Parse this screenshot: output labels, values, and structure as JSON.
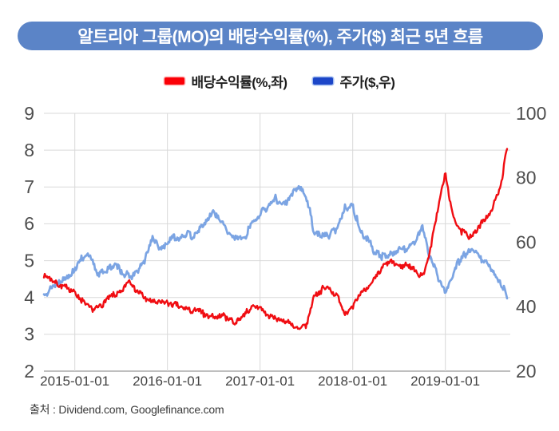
{
  "title": "알트리아 그룹(MO)의 배당수익률(%), 주가($) 최근 5년 흐름",
  "banner_color": "#5b84c7",
  "legend": [
    {
      "label": "배당수익률(%,좌)",
      "color": "#fb0007"
    },
    {
      "label": "주가($,우)",
      "color": "#1c46c8"
    }
  ],
  "source": "출처 : Dividend.com, Googlefinance.com",
  "chart_data": {
    "type": "line",
    "title": "알트리아 그룹(MO)의 배당수익률(%), 주가($) 최근 5년 흐름",
    "grid": true,
    "legend_position": "top",
    "x_range": [
      "2014-09",
      "2019-09"
    ],
    "x_tick_labels": [
      "2015-01-01",
      "2016-01-01",
      "2017-01-01",
      "2018-01-01",
      "2019-01-01"
    ],
    "left_axis": {
      "label": "배당수익률(%)",
      "range": [
        2,
        9
      ],
      "ticks": [
        9,
        8,
        7,
        6,
        5,
        4,
        3,
        2
      ]
    },
    "right_axis": {
      "label": "주가($)",
      "range": [
        20,
        100
      ],
      "ticks": [
        100,
        80,
        60,
        40,
        20
      ]
    },
    "months": [
      "2014-09",
      "2014-10",
      "2014-11",
      "2014-12",
      "2015-01",
      "2015-02",
      "2015-03",
      "2015-04",
      "2015-05",
      "2015-06",
      "2015-07",
      "2015-08",
      "2015-09",
      "2015-10",
      "2015-11",
      "2015-12",
      "2016-01",
      "2016-02",
      "2016-03",
      "2016-04",
      "2016-05",
      "2016-06",
      "2016-07",
      "2016-08",
      "2016-09",
      "2016-10",
      "2016-11",
      "2016-12",
      "2017-01",
      "2017-02",
      "2017-03",
      "2017-04",
      "2017-05",
      "2017-06",
      "2017-07",
      "2017-08",
      "2017-09",
      "2017-10",
      "2017-11",
      "2017-12",
      "2018-01",
      "2018-02",
      "2018-03",
      "2018-04",
      "2018-05",
      "2018-06",
      "2018-07",
      "2018-08",
      "2018-09",
      "2018-10",
      "2018-11",
      "2018-12",
      "2019-01",
      "2019-02",
      "2019-03",
      "2019-04",
      "2019-05",
      "2019-06",
      "2019-07",
      "2019-08",
      "2019-09"
    ],
    "series": [
      {
        "name": "배당수익률(%,좌)",
        "axis": "left",
        "color": "#f00d12",
        "unit": "%",
        "values": [
          4.65,
          4.5,
          4.35,
          4.25,
          4.15,
          3.9,
          3.65,
          3.7,
          3.9,
          4.05,
          4.1,
          4.5,
          4.2,
          4.0,
          3.9,
          3.85,
          3.85,
          3.8,
          3.7,
          3.65,
          3.6,
          3.55,
          3.45,
          3.5,
          3.45,
          3.3,
          3.6,
          3.7,
          3.75,
          3.5,
          3.4,
          3.35,
          3.3,
          3.1,
          3.25,
          4.1,
          4.2,
          4.25,
          4.05,
          3.6,
          3.7,
          4.1,
          4.3,
          4.5,
          4.85,
          4.95,
          4.85,
          4.9,
          4.75,
          4.55,
          5.2,
          6.4,
          7.35,
          6.2,
          5.8,
          5.65,
          5.8,
          6.1,
          6.35,
          6.9,
          8.0
        ]
      },
      {
        "name": "주가($,우)",
        "axis": "right",
        "color": "#7ba4e3",
        "unit": "$",
        "values": [
          44,
          46,
          48,
          49.5,
          52,
          55.5,
          55,
          50.5,
          51.5,
          52.5,
          51.5,
          49,
          50.5,
          54,
          61,
          58,
          60,
          61.5,
          62.5,
          62,
          63,
          66,
          70,
          66.5,
          62.5,
          62,
          61,
          66.5,
          68.5,
          71.5,
          73.5,
          71.5,
          74,
          77,
          74,
          63.5,
          61.5,
          62.5,
          64.5,
          71,
          71.5,
          63,
          60.5,
          56.5,
          55.5,
          57,
          57.5,
          58.5,
          60.5,
          65,
          55,
          50,
          44,
          50,
          55,
          57,
          56.5,
          54,
          51.5,
          48,
          43.5
        ]
      }
    ]
  }
}
